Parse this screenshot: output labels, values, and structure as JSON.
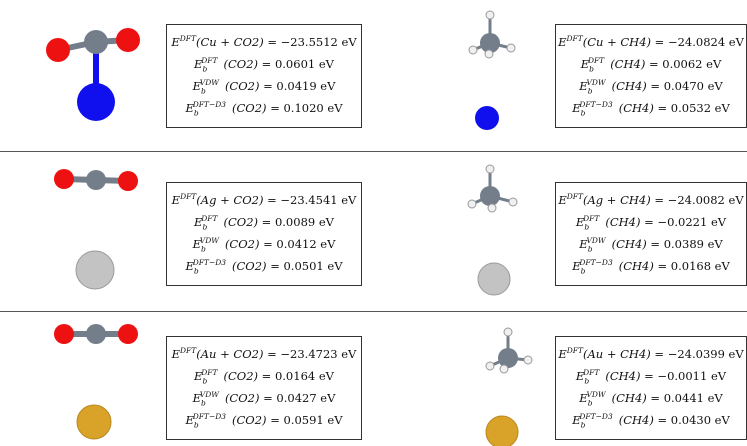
{
  "colors": {
    "carbon": "#737e8a",
    "oxygen": "#ee1111",
    "hydrogen": "#f0f0f0",
    "cu": "#1010ee",
    "ag": "#c3c3c3",
    "au": "#d9a32a",
    "separator": "#555555"
  },
  "panels": [
    {
      "metal": "Cu",
      "molecule": "CO2",
      "dft_total": {
        "lhs": "E^DFT(Cu + CO2)",
        "value": "= −23.5512 eV"
      },
      "eb_dft": "= 0.0601 eV",
      "eb_vdw": "= 0.0419 eV",
      "eb_d3": "= 0.1020 eV"
    },
    {
      "metal": "Cu",
      "molecule": "CH4",
      "dft_total": {
        "lhs": "E^DFT(Cu + CH4)",
        "value": "= −24.0824 eV"
      },
      "eb_dft": "= 0.0062 eV",
      "eb_vdw": "= 0.0470 eV",
      "eb_d3": "= 0.0532 eV"
    },
    {
      "metal": "Ag",
      "molecule": "CO2",
      "dft_total": {
        "lhs": "E^DFT(Ag + CO2)",
        "value": "= −23.4541 eV"
      },
      "eb_dft": "= 0.0089 eV",
      "eb_vdw": "= 0.0412 eV",
      "eb_d3": "= 0.0501 eV"
    },
    {
      "metal": "Ag",
      "molecule": "CH4",
      "dft_total": {
        "lhs": "E^DFT(Ag + CH4)",
        "value": "= −24.0082 eV"
      },
      "eb_dft": "= −0.0221 eV",
      "eb_vdw": "= 0.0389 eV",
      "eb_d3": "= 0.0168 eV"
    },
    {
      "metal": "Au",
      "molecule": "CO2",
      "dft_total": {
        "lhs": "E^DFT(Au + CO2)",
        "value": "= −23.4723 eV"
      },
      "eb_dft": "= 0.0164 eV",
      "eb_vdw": "= 0.0427 eV",
      "eb_d3": "= 0.0591 eV"
    },
    {
      "metal": "Au",
      "molecule": "CH4",
      "dft_total": {
        "lhs": "E^DFT(Au + CH4)",
        "value": "= −24.0399 eV"
      },
      "eb_dft": "= −0.0011 eV",
      "eb_vdw": "= 0.0441 eV",
      "eb_d3": "= 0.0430 eV"
    }
  ]
}
